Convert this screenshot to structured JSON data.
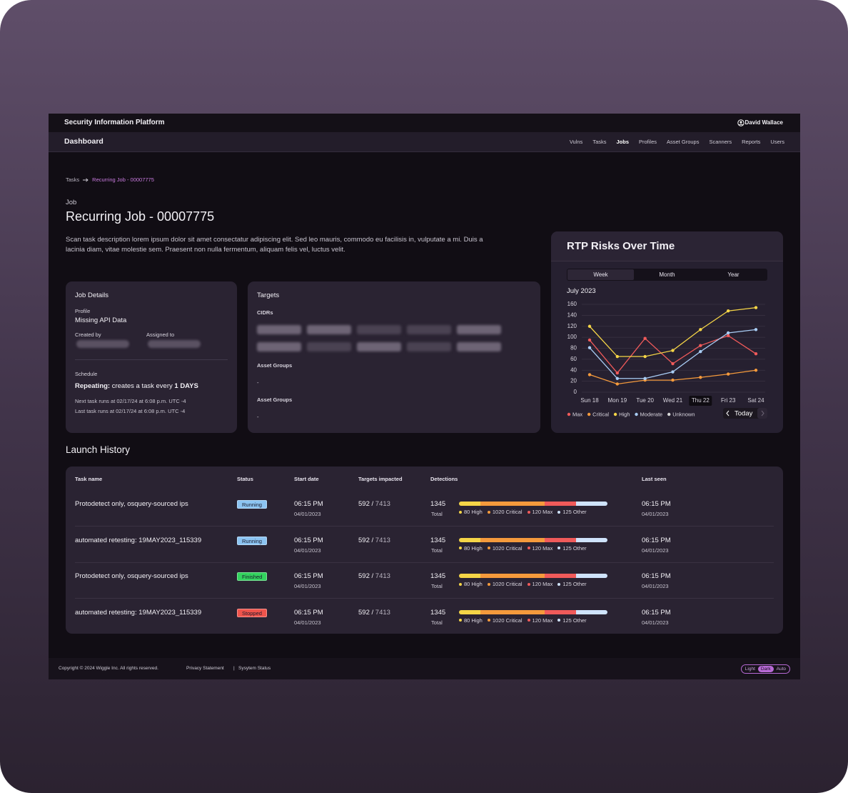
{
  "header": {
    "platform": "Security Information Platform",
    "user": "David Wallace"
  },
  "nav": {
    "title": "Dashboard",
    "items": [
      "Vulns",
      "Tasks",
      "Jobs",
      "Profiles",
      "Asset Groups",
      "Scanners",
      "Reports",
      "Users"
    ],
    "active": 2
  },
  "breadcrumb": [
    "Tasks",
    "Recurring Job - 00007775"
  ],
  "job": {
    "label": "Job",
    "title": "Recurring Job - 00007775",
    "description": "Scan task description lorem ipsum dolor sit amet consectatur adipiscing elit. Sed leo mauris, commodo eu facilisis in, vulputate a mi. Duis a lacinia diam, vitae molestie sem. Praesent non nulla fermentum, aliquam felis vel, luctus velit."
  },
  "job_details": {
    "title": "Job Details",
    "profile_label": "Profile",
    "profile": "Missing API Data",
    "created_by_label": "Created by",
    "assigned_to_label": "Assigned to",
    "schedule_label": "Schedule",
    "repeat_prefix": "Repeating:",
    "repeat_text": "creates a task every",
    "repeat_interval": "1 DAYS",
    "next_run": "Next task runs at 02/17/24 at 6:08 p.m. UTC -4",
    "last_run": "Last task runs at 02/17/24 at 6:08 p.m. UTC -4"
  },
  "targets": {
    "title": "Targets",
    "cidrs_label": "CIDRs",
    "sections": [
      {
        "label": "Asset Groups",
        "value": "-"
      },
      {
        "label": "Asset Groups",
        "value": "-"
      }
    ]
  },
  "chart_data": {
    "type": "line",
    "title": "RTP Risks Over Time",
    "tabs": [
      "Week",
      "Month",
      "Year"
    ],
    "active_tab": 0,
    "subtitle": "July 2023",
    "categories": [
      "Sun 18",
      "Mon 19",
      "Tue 20",
      "Wed 21",
      "Thu 22",
      "Fri 23",
      "Sat 24"
    ],
    "highlight": 4,
    "series": [
      {
        "name": "Max",
        "color": "#f05a5a",
        "values": [
          95,
          35,
          98,
          52,
          85,
          103,
          70
        ]
      },
      {
        "name": "Critical",
        "color": "#f59a3c",
        "values": [
          32,
          15,
          22,
          22,
          27,
          33,
          40
        ]
      },
      {
        "name": "High",
        "color": "#f5d547",
        "values": [
          120,
          65,
          65,
          76,
          114,
          148,
          154
        ]
      },
      {
        "name": "Moderate",
        "color": "#a9cdf5",
        "values": [
          81,
          25,
          25,
          37,
          74,
          108,
          114
        ]
      },
      {
        "name": "Unknown",
        "color": "#d8d8d8",
        "values": [
          null,
          null,
          null,
          null,
          null,
          null,
          null
        ]
      }
    ],
    "ylim": [
      0,
      160
    ],
    "yticks": [
      0,
      20,
      40,
      60,
      80,
      100,
      120,
      140,
      160
    ],
    "grid": true,
    "today_label": "Today"
  },
  "launch_history": {
    "title": "Launch History",
    "columns": [
      "Task name",
      "Status",
      "Start date",
      "Targets impacted",
      "Detections",
      "Last seen"
    ],
    "targets_separator": "/",
    "total_label": "Total",
    "breakdown_colors": [
      "#f5d547",
      "#f59a3c",
      "#f05a5a",
      "#cfe3fb"
    ],
    "rows": [
      {
        "task": "Protodetect only, osquery-sourced ips",
        "status": "Running",
        "status_color": "#8cc4f2",
        "start_time": "06:15 PM",
        "start_date": "04/01/2023",
        "targets_impacted": 592,
        "targets_total": 7413,
        "detections": 1345,
        "breakdown": [
          "80 High",
          "1020 Critical",
          "120 Max",
          "125 Other"
        ],
        "last_time": "06:15 PM",
        "last_date": "04/01/2023"
      },
      {
        "task": "automated retesting: 19MAY2023_115339",
        "status": "Running",
        "status_color": "#8cc4f2",
        "start_time": "06:15 PM",
        "start_date": "04/01/2023",
        "targets_impacted": 592,
        "targets_total": 7413,
        "detections": 1345,
        "breakdown": [
          "80 High",
          "1020 Critical",
          "120 Max",
          "125 Other"
        ],
        "last_time": "06:15 PM",
        "last_date": "04/01/2023"
      },
      {
        "task": "Protodetect only, osquery-sourced ips",
        "status": "Finished",
        "status_color": "#33d35e",
        "start_time": "06:15 PM",
        "start_date": "04/01/2023",
        "targets_impacted": 592,
        "targets_total": 7413,
        "detections": 1345,
        "breakdown": [
          "80 High",
          "1020 Critical",
          "120 Max",
          "125 Other"
        ],
        "last_time": "06:15 PM",
        "last_date": "04/01/2023"
      },
      {
        "task": "automated retesting: 19MAY2023_115339",
        "status": "Stopped",
        "status_color": "#f0544c",
        "start_time": "06:15 PM",
        "start_date": "04/01/2023",
        "targets_impacted": 592,
        "targets_total": 7413,
        "detections": 1345,
        "breakdown": [
          "80 High",
          "1020 Critical",
          "120 Max",
          "125 Other"
        ],
        "last_time": "06:15 PM",
        "last_date": "04/01/2023"
      }
    ]
  },
  "footer": {
    "copyright": "Copyright © 2024 Wiggle Inc. All rights reserved.",
    "links": [
      "Privacy Statement",
      "Sysytem Status"
    ],
    "separator": "|",
    "theme": {
      "options": [
        "Light",
        "Dark",
        "Auto"
      ],
      "active": 1
    }
  }
}
